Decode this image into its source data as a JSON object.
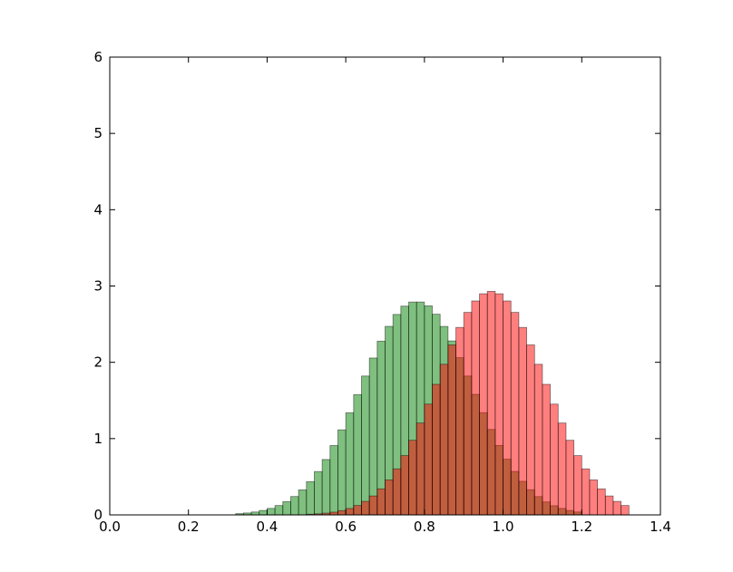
{
  "chart_data": {
    "type": "histogram",
    "xlim": [
      0,
      1.4
    ],
    "ylim": [
      0,
      6
    ],
    "xticks": [
      {
        "value": 0,
        "label": "0.0"
      },
      {
        "value": 0.2,
        "label": "0.2"
      },
      {
        "value": 0.4,
        "label": "0.4"
      },
      {
        "value": 0.6,
        "label": "0.6"
      },
      {
        "value": 0.8,
        "label": "0.8"
      },
      {
        "value": 1.0,
        "label": "1.0"
      },
      {
        "value": 1.2,
        "label": "1.2"
      },
      {
        "value": 1.4,
        "label": "1.4"
      }
    ],
    "yticks": [
      0,
      1,
      2,
      3,
      4,
      5,
      6
    ],
    "alpha": 0.5,
    "series": [
      {
        "color": "#008000",
        "bins": [
          0.32,
          0.34,
          0.36,
          0.38,
          0.4,
          0.42,
          0.44,
          0.46,
          0.48,
          0.5,
          0.52,
          0.54,
          0.56,
          0.58,
          0.6,
          0.62,
          0.64,
          0.66,
          0.68,
          0.7,
          0.72,
          0.74,
          0.76,
          0.78,
          0.8,
          0.82,
          0.84,
          0.86,
          0.88,
          0.9,
          0.92,
          0.94,
          0.96,
          0.98,
          1.0,
          1.02,
          1.04,
          1.06,
          1.08,
          1.1,
          1.12,
          1.14,
          1.16,
          1.18,
          1.2
        ],
        "values": [
          0.016,
          0.025,
          0.038,
          0.058,
          0.085,
          0.123,
          0.174,
          0.241,
          0.328,
          0.436,
          0.568,
          0.726,
          0.909,
          1.115,
          1.339,
          1.577,
          1.82,
          2.056,
          2.277,
          2.471,
          2.627,
          2.736,
          2.79,
          2.79,
          2.74,
          2.63,
          2.47,
          2.28,
          2.06,
          1.82,
          1.58,
          1.34,
          1.12,
          0.91,
          0.73,
          0.57,
          0.44,
          0.33,
          0.24,
          0.17,
          0.12,
          0.085,
          0.058,
          0.038
        ]
      },
      {
        "color": "#ff0000",
        "bins": [
          0.5,
          0.52,
          0.54,
          0.56,
          0.58,
          0.6,
          0.62,
          0.64,
          0.66,
          0.68,
          0.7,
          0.72,
          0.74,
          0.76,
          0.78,
          0.8,
          0.82,
          0.84,
          0.86,
          0.88,
          0.9,
          0.92,
          0.94,
          0.96,
          0.98,
          1.0,
          1.02,
          1.04,
          1.06,
          1.08,
          1.1,
          1.12,
          1.14,
          1.16,
          1.18,
          1.2,
          1.22,
          1.24,
          1.26,
          1.28,
          1.3,
          1.32
        ],
        "values": [
          0.009,
          0.014,
          0.023,
          0.036,
          0.056,
          0.084,
          0.123,
          0.177,
          0.248,
          0.341,
          0.459,
          0.603,
          0.777,
          0.978,
          1.204,
          1.452,
          1.711,
          1.974,
          2.228,
          2.457,
          2.654,
          2.804,
          2.898,
          2.93,
          2.898,
          2.804,
          2.654,
          2.457,
          2.228,
          1.974,
          1.711,
          1.452,
          1.204,
          0.978,
          0.777,
          0.603,
          0.459,
          0.341,
          0.248,
          0.177,
          0.123
        ]
      }
    ]
  }
}
